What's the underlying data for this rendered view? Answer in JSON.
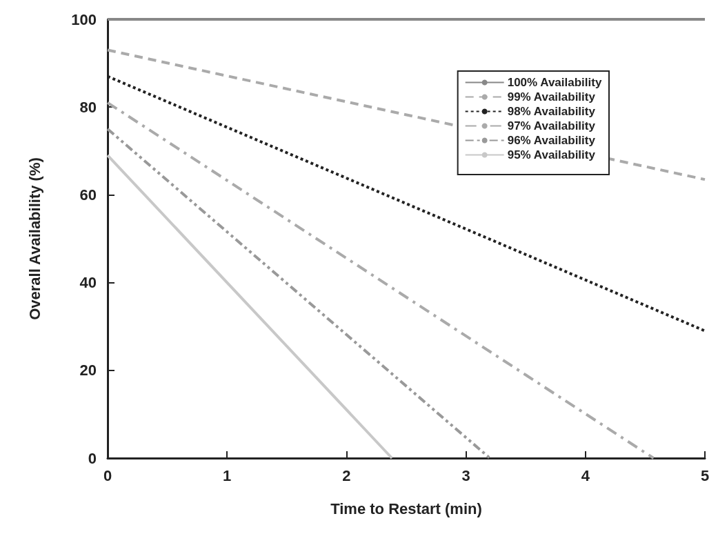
{
  "chart_data": {
    "type": "line",
    "xlabel": "Time to Restart (min)",
    "ylabel": "Overall Availability (%)",
    "xlim": [
      0,
      5
    ],
    "xticks": [
      0,
      1,
      2,
      3,
      4,
      5
    ],
    "ylim": [
      0,
      100
    ],
    "yticks": [
      0,
      20,
      40,
      60,
      80,
      100
    ],
    "grid": false,
    "legend": "top right",
    "marker": "none",
    "series": [
      {
        "name": "100% Availability",
        "color": "#888888",
        "line_style": "solid",
        "x": [
          0,
          5
        ],
        "values": [
          100,
          100
        ]
      },
      {
        "name": "99% Availability",
        "color": "#aaaaaa",
        "line_style": "dashed",
        "x": [
          0,
          5
        ],
        "values": [
          93,
          63.5
        ]
      },
      {
        "name": "98% Availability",
        "color": "#222222",
        "line_style": "dotted",
        "x": [
          0,
          5
        ],
        "values": [
          87,
          29
        ]
      },
      {
        "name": "97% Availability",
        "color": "#aaaaaa",
        "line_style": "dashdot",
        "x": [
          0,
          4.57
        ],
        "values": [
          81,
          0
        ]
      },
      {
        "name": "96% Availability",
        "color": "#999999",
        "line_style": "dashdotdot",
        "x": [
          0,
          3.2
        ],
        "values": [
          75,
          0
        ]
      },
      {
        "name": "95% Availability",
        "color": "#c8c8c8",
        "line_style": "solid",
        "x": [
          0,
          2.38
        ],
        "values": [
          69,
          0
        ]
      }
    ]
  }
}
